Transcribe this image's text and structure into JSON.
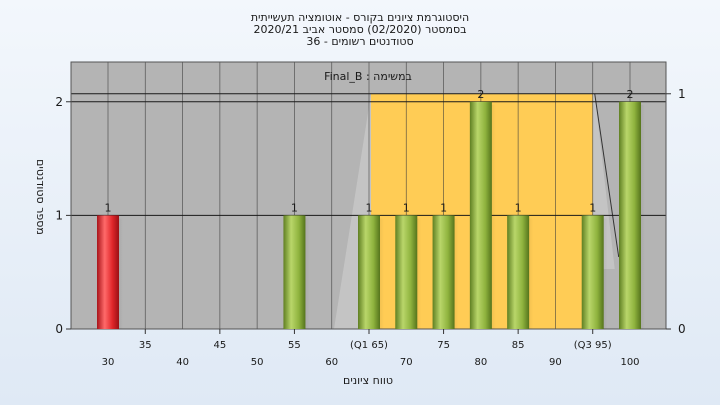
{
  "chart_data": {
    "type": "bar",
    "title_lines": [
      "היסטוגרמת ציונים בקורס - אוטומציה תעשייתית",
      "בסמסטר  (02/2020)  סמסטר אביב 2020/21",
      "סטודנטים רשומים - 36"
    ],
    "subtitle": "במשימה : Final_B",
    "xlabel": "טווח ציונים",
    "ylabel": "מספר סטודנטים",
    "ylim": [
      0,
      2.35
    ],
    "y_ticks": [
      0,
      1,
      2
    ],
    "secondary_y_ticks": [
      0,
      1
    ],
    "x_ticks_upper": [
      "35",
      "45",
      "55",
      "(Q1 65)",
      "75",
      "85",
      "(Q3 95)"
    ],
    "x_ticks_lower": [
      "30",
      "40",
      "50",
      "60",
      "70",
      "80",
      "90",
      "100"
    ],
    "categories": [
      "30",
      "55",
      "65",
      "70",
      "75",
      "80",
      "85",
      "95",
      "100"
    ],
    "values": [
      1,
      1,
      1,
      1,
      1,
      2,
      1,
      1,
      2
    ],
    "data_labels": [
      "1",
      "1",
      "1",
      "1",
      "1",
      "2",
      "1",
      "1",
      "2"
    ],
    "bar_colors": [
      "red",
      "green",
      "green",
      "green",
      "green",
      "green",
      "green",
      "green",
      "green"
    ],
    "iqr_range": [
      65,
      95
    ],
    "colors": {
      "plot_bg": "#b4b4b4",
      "iqr_fill": "#ffcc55",
      "bar_green": "#8fb33e",
      "bar_red": "#e0262a"
    },
    "grid": true,
    "legend": "none"
  }
}
